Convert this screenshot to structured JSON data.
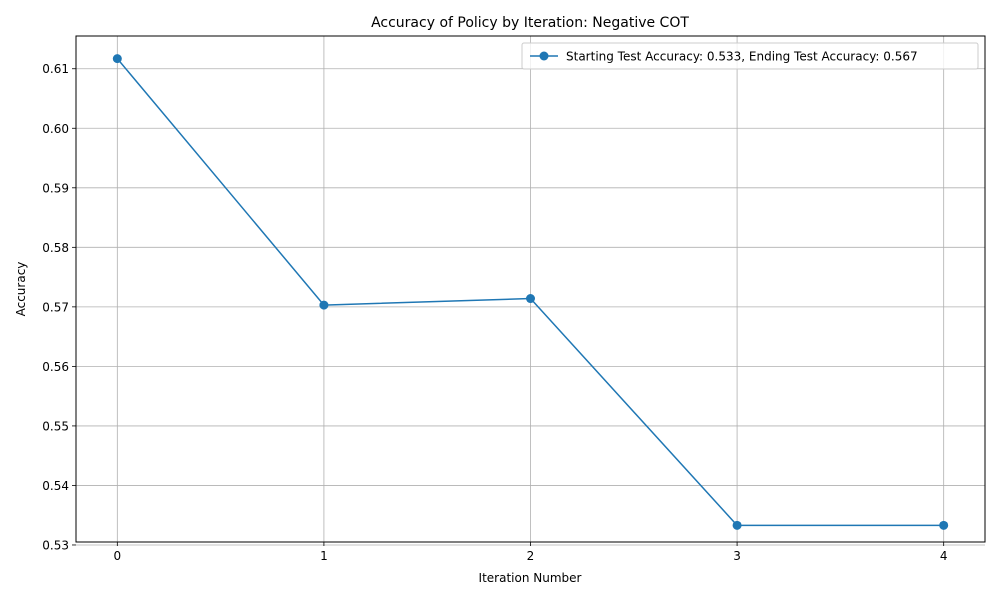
{
  "chart_data": {
    "type": "line",
    "title": "Accuracy of Policy by Iteration: Negative COT",
    "xlabel": "Iteration Number",
    "ylabel": "Accuracy",
    "x": [
      0,
      1,
      2,
      3,
      4
    ],
    "xticks": [
      "0",
      "1",
      "2",
      "3",
      "4"
    ],
    "xlim": [
      -0.2,
      4.2
    ],
    "ylim": [
      0.5305,
      0.6155
    ],
    "yticks": [
      0.53,
      0.54,
      0.55,
      0.56,
      0.57,
      0.58,
      0.59,
      0.6,
      0.61
    ],
    "ytick_labels": [
      "0.53",
      "0.54",
      "0.55",
      "0.56",
      "0.57",
      "0.58",
      "0.59",
      "0.60",
      "0.61"
    ],
    "grid": true,
    "legend_position": "top-right",
    "series": [
      {
        "name": "Starting Test Accuracy: 0.533, Ending Test Accuracy: 0.567",
        "color": "#1f77b4",
        "marker": "circle",
        "values": [
          0.6117,
          0.5703,
          0.5714,
          0.5333,
          0.5333
        ]
      }
    ]
  }
}
